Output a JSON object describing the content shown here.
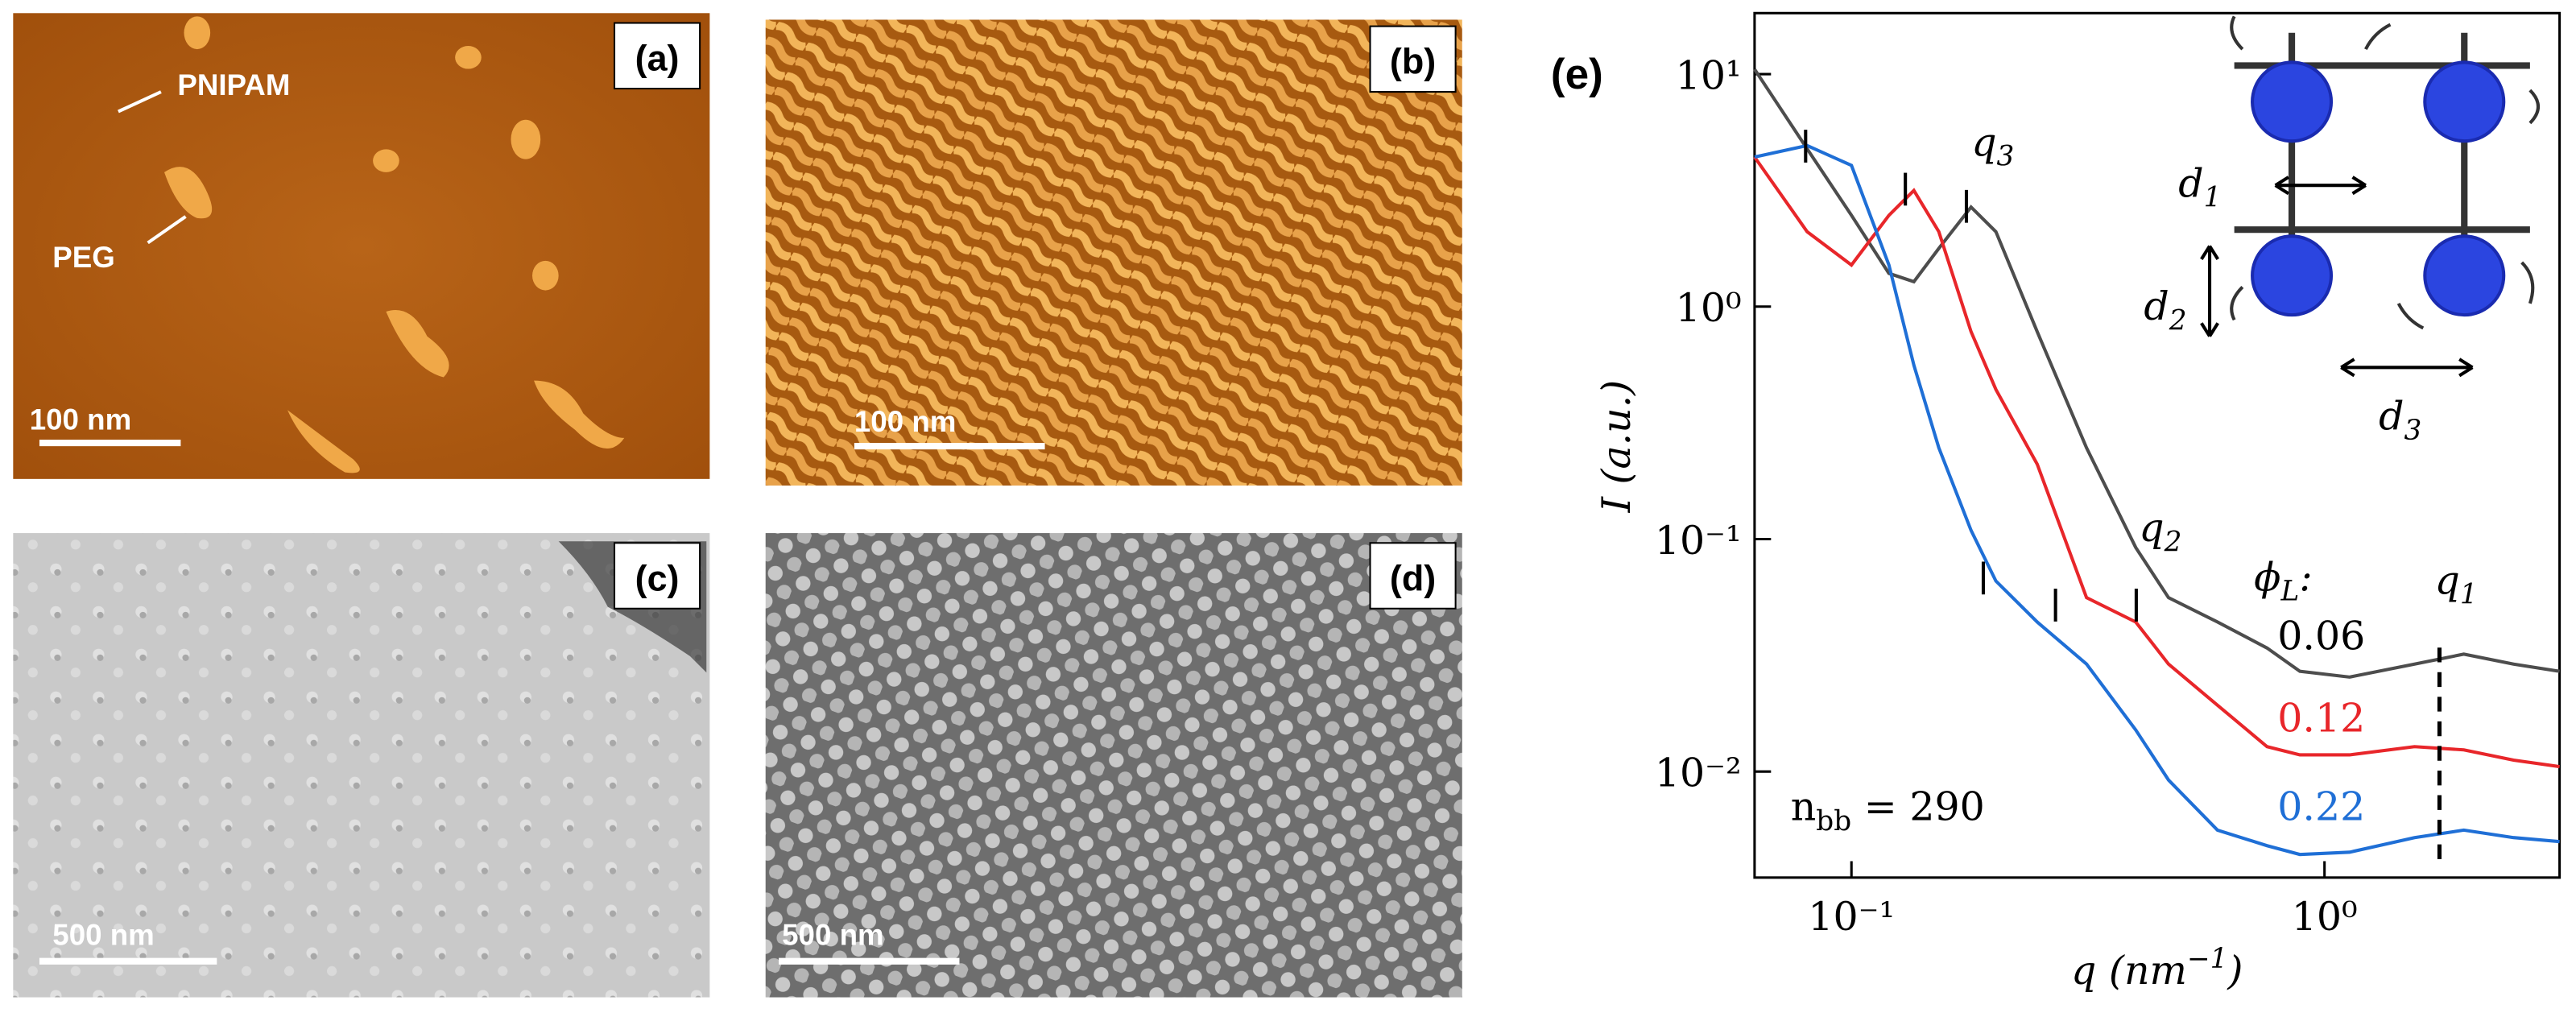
{
  "panels": [
    {
      "label": "(a)",
      "scale_bar": "100 nm",
      "annotations": [
        "PNIPAM",
        "PEG"
      ]
    },
    {
      "label": "(b)",
      "scale_bar": "100 nm"
    },
    {
      "label": "(c)",
      "scale_bar": "500 nm"
    },
    {
      "label": "(d)",
      "scale_bar": "500 nm"
    }
  ],
  "chart_data": {
    "type": "line",
    "panel_label": "(e)",
    "x_label": {
      "text": "q (nm",
      "sup": "−1",
      "rest": ")"
    },
    "y_label": {
      "text": "I (a.u.)"
    },
    "log_x": true,
    "log_y": true,
    "xlim": [
      0.0624,
      3.14
    ],
    "ylim": [
      0.0035,
      18.3
    ],
    "xticks": [
      {
        "value": 0.1,
        "label": "10⁻¹"
      },
      {
        "value": 1,
        "label": "10⁰"
      }
    ],
    "yticks": [
      {
        "value": 0.01,
        "label": "10⁻²"
      },
      {
        "value": 0.1,
        "label": "10⁻¹"
      },
      {
        "value": 1,
        "label": "10⁰"
      },
      {
        "value": 10,
        "label": "10¹"
      }
    ],
    "x": [
      0.0624,
      0.0806,
      0.1,
      0.12,
      0.1355,
      0.153,
      0.179,
      0.202,
      0.247,
      0.314,
      0.399,
      0.468,
      0.594,
      0.756,
      0.887,
      1.13,
      1.55,
      1.97,
      2.51,
      3.14
    ],
    "legend_title": {
      "text": "ϕ",
      "sub": "L",
      "rest": ":"
    },
    "series": [
      {
        "name": "0.06",
        "color": "#4d4d4d",
        "values": [
          10.5,
          4.77,
          2.47,
          1.39,
          1.28,
          1.78,
          2.68,
          2.1,
          0.78,
          0.247,
          0.092,
          0.056,
          0.044,
          0.034,
          0.027,
          0.0255,
          0.029,
          0.032,
          0.029,
          0.027
        ]
      },
      {
        "name": "0.12",
        "color": "#e8262a",
        "values": [
          4.4,
          2.1,
          1.51,
          2.47,
          3.16,
          2.1,
          0.78,
          0.44,
          0.21,
          0.056,
          0.044,
          0.029,
          0.0193,
          0.0128,
          0.0118,
          0.0118,
          0.0128,
          0.0124,
          0.0112,
          0.0105
        ]
      },
      {
        "name": "0.22",
        "color": "#1f6fd6",
        "values": [
          4.4,
          4.93,
          4.05,
          1.51,
          0.56,
          0.247,
          0.109,
          0.066,
          0.044,
          0.029,
          0.0151,
          0.0092,
          0.0056,
          0.0048,
          0.0044,
          0.0045,
          0.0052,
          0.0056,
          0.0052,
          0.005
        ]
      }
    ],
    "peak_marks": [
      {
        "x": 0.08,
        "y": 4.9
      },
      {
        "x": 0.13,
        "y": 3.2
      },
      {
        "x": 0.175,
        "y": 2.7
      },
      {
        "x": 0.19,
        "y": 0.068
      },
      {
        "x": 0.27,
        "y": 0.052
      },
      {
        "x": 0.4,
        "y": 0.052
      }
    ],
    "q1_line": {
      "x": 1.75,
      "y": [
        0.0042,
        0.035
      ]
    },
    "annotations": [
      {
        "text": "q",
        "sub": "3"
      },
      {
        "text": "q",
        "sub": "2"
      },
      {
        "text": "q",
        "sub": "1"
      },
      {
        "text": "n",
        "sub": "bb",
        "rest": " = 290"
      }
    ],
    "inset_labels": [
      {
        "text": "d",
        "sub": "1"
      },
      {
        "text": "d",
        "sub": "2"
      },
      {
        "text": "d",
        "sub": "3"
      }
    ]
  }
}
